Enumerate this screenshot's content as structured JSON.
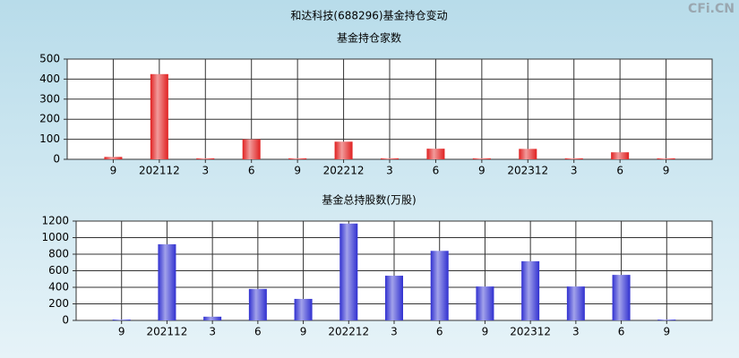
{
  "title": "和达科技(688296)基金持仓变动",
  "watermark": "CFi.CN",
  "chart_data": [
    {
      "type": "bar",
      "title": "基金持仓家数",
      "categories": [
        "9",
        "202112",
        "3",
        "6",
        "9",
        "202212",
        "3",
        "6",
        "9",
        "202312",
        "3",
        "6",
        "9"
      ],
      "values": [
        12,
        425,
        5,
        100,
        5,
        88,
        5,
        53,
        5,
        52,
        5,
        35,
        5
      ],
      "color": "#e02020",
      "ylim": [
        0,
        500
      ],
      "yticks": [
        0,
        100,
        200,
        300,
        400,
        500
      ],
      "grid": true
    },
    {
      "type": "bar",
      "title": "基金总持股数(万股)",
      "categories": [
        "9",
        "202112",
        "3",
        "6",
        "9",
        "202212",
        "3",
        "6",
        "9",
        "202312",
        "3",
        "6",
        "9"
      ],
      "values": [
        10,
        920,
        45,
        380,
        260,
        1170,
        540,
        840,
        410,
        715,
        410,
        550,
        10
      ],
      "color": "#3030d0",
      "ylim": [
        0,
        1200
      ],
      "yticks": [
        0,
        200,
        400,
        600,
        800,
        1000,
        1200
      ],
      "grid": true
    }
  ]
}
